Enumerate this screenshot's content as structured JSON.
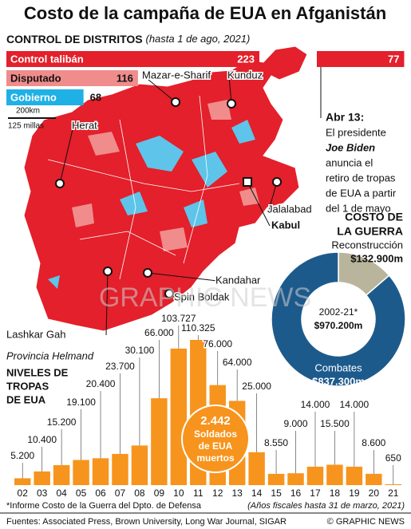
{
  "title": "Costo de la campaña de EUA en Afganistán",
  "control": {
    "title": "CONTROL DE DISTRITOS",
    "subtitle": "(hasta 1 de ago, 2021)",
    "items": [
      {
        "name": "Control talibán",
        "value": 223,
        "color": "#e3202b"
      },
      {
        "name": "Disputado",
        "value": 116,
        "color": "#f08c8c"
      },
      {
        "name": "Gobierno",
        "value": 68,
        "color": "#1fb1e6"
      }
    ],
    "extra": {
      "value": 77,
      "color": "#e3202b"
    },
    "scale": [
      "200km",
      "125 millas"
    ]
  },
  "map": {
    "cities": [
      "Mazar-e-Sharif",
      "Kunduz",
      "Herat",
      "Jalalabad",
      "Kabul",
      "Kandahar",
      "Spin Boldak",
      "Lashkar Gah"
    ],
    "province": "Provincia Helmand"
  },
  "annotation": {
    "date": "Abr 13:",
    "lines": [
      "El presidente",
      "Joe Biden",
      "anuncia el",
      "retiro de tropas",
      "de EUA a partir",
      "del 1 de mayo"
    ]
  },
  "deaths": [
    "2.442",
    "Soldados",
    "de EUA",
    "muertos"
  ],
  "watermark": "GRAPHIC NEWS",
  "chart_data": [
    {
      "type": "bar",
      "title": [
        "NIVELES DE",
        "TROPAS",
        "DE EUA"
      ],
      "categories": [
        "02",
        "03",
        "04",
        "05",
        "06",
        "07",
        "08",
        "09",
        "10",
        "11",
        "12",
        "13",
        "14",
        "15",
        "16",
        "17",
        "18",
        "19",
        "20",
        "21"
      ],
      "values": [
        5200,
        10400,
        15200,
        19100,
        20400,
        23700,
        30100,
        66000,
        103727,
        110325,
        76000,
        64000,
        25000,
        8550,
        9000,
        14000,
        15500,
        14000,
        8600,
        650
      ],
      "value_labels": [
        "5.200",
        "10.400",
        "15.200",
        "19.100",
        "20.400",
        "23.700",
        "30.100",
        "66.000",
        "103.727",
        "110.325",
        "76.000",
        "64.000",
        "25.000",
        "8.550",
        "9.000",
        "14.000",
        "15.500",
        "14.000",
        "8.600",
        "650"
      ],
      "color": "#f7941d"
    },
    {
      "type": "pie",
      "title": [
        "COSTO DE",
        "LA GUERRA"
      ],
      "categories": [
        "Reconstrucción",
        "Combates"
      ],
      "values": [
        132900,
        837300
      ],
      "value_labels": [
        "$132.900m",
        "$837.300m"
      ],
      "colors": [
        "#b8b59c",
        "#1d5a8c"
      ],
      "period": "2002-21*",
      "total_label": "$970.200m"
    }
  ],
  "footnote": [
    "*Informe Costo de la Guerra del Dpto. de Defensa",
    "(Años fiscales hasta 31 de marzo, 2021)"
  ],
  "footer": {
    "sources": "Fuentes: Associated Press, Brown University, Long War Journal, SIGAR",
    "credit": "© GRAPHIC NEWS"
  }
}
